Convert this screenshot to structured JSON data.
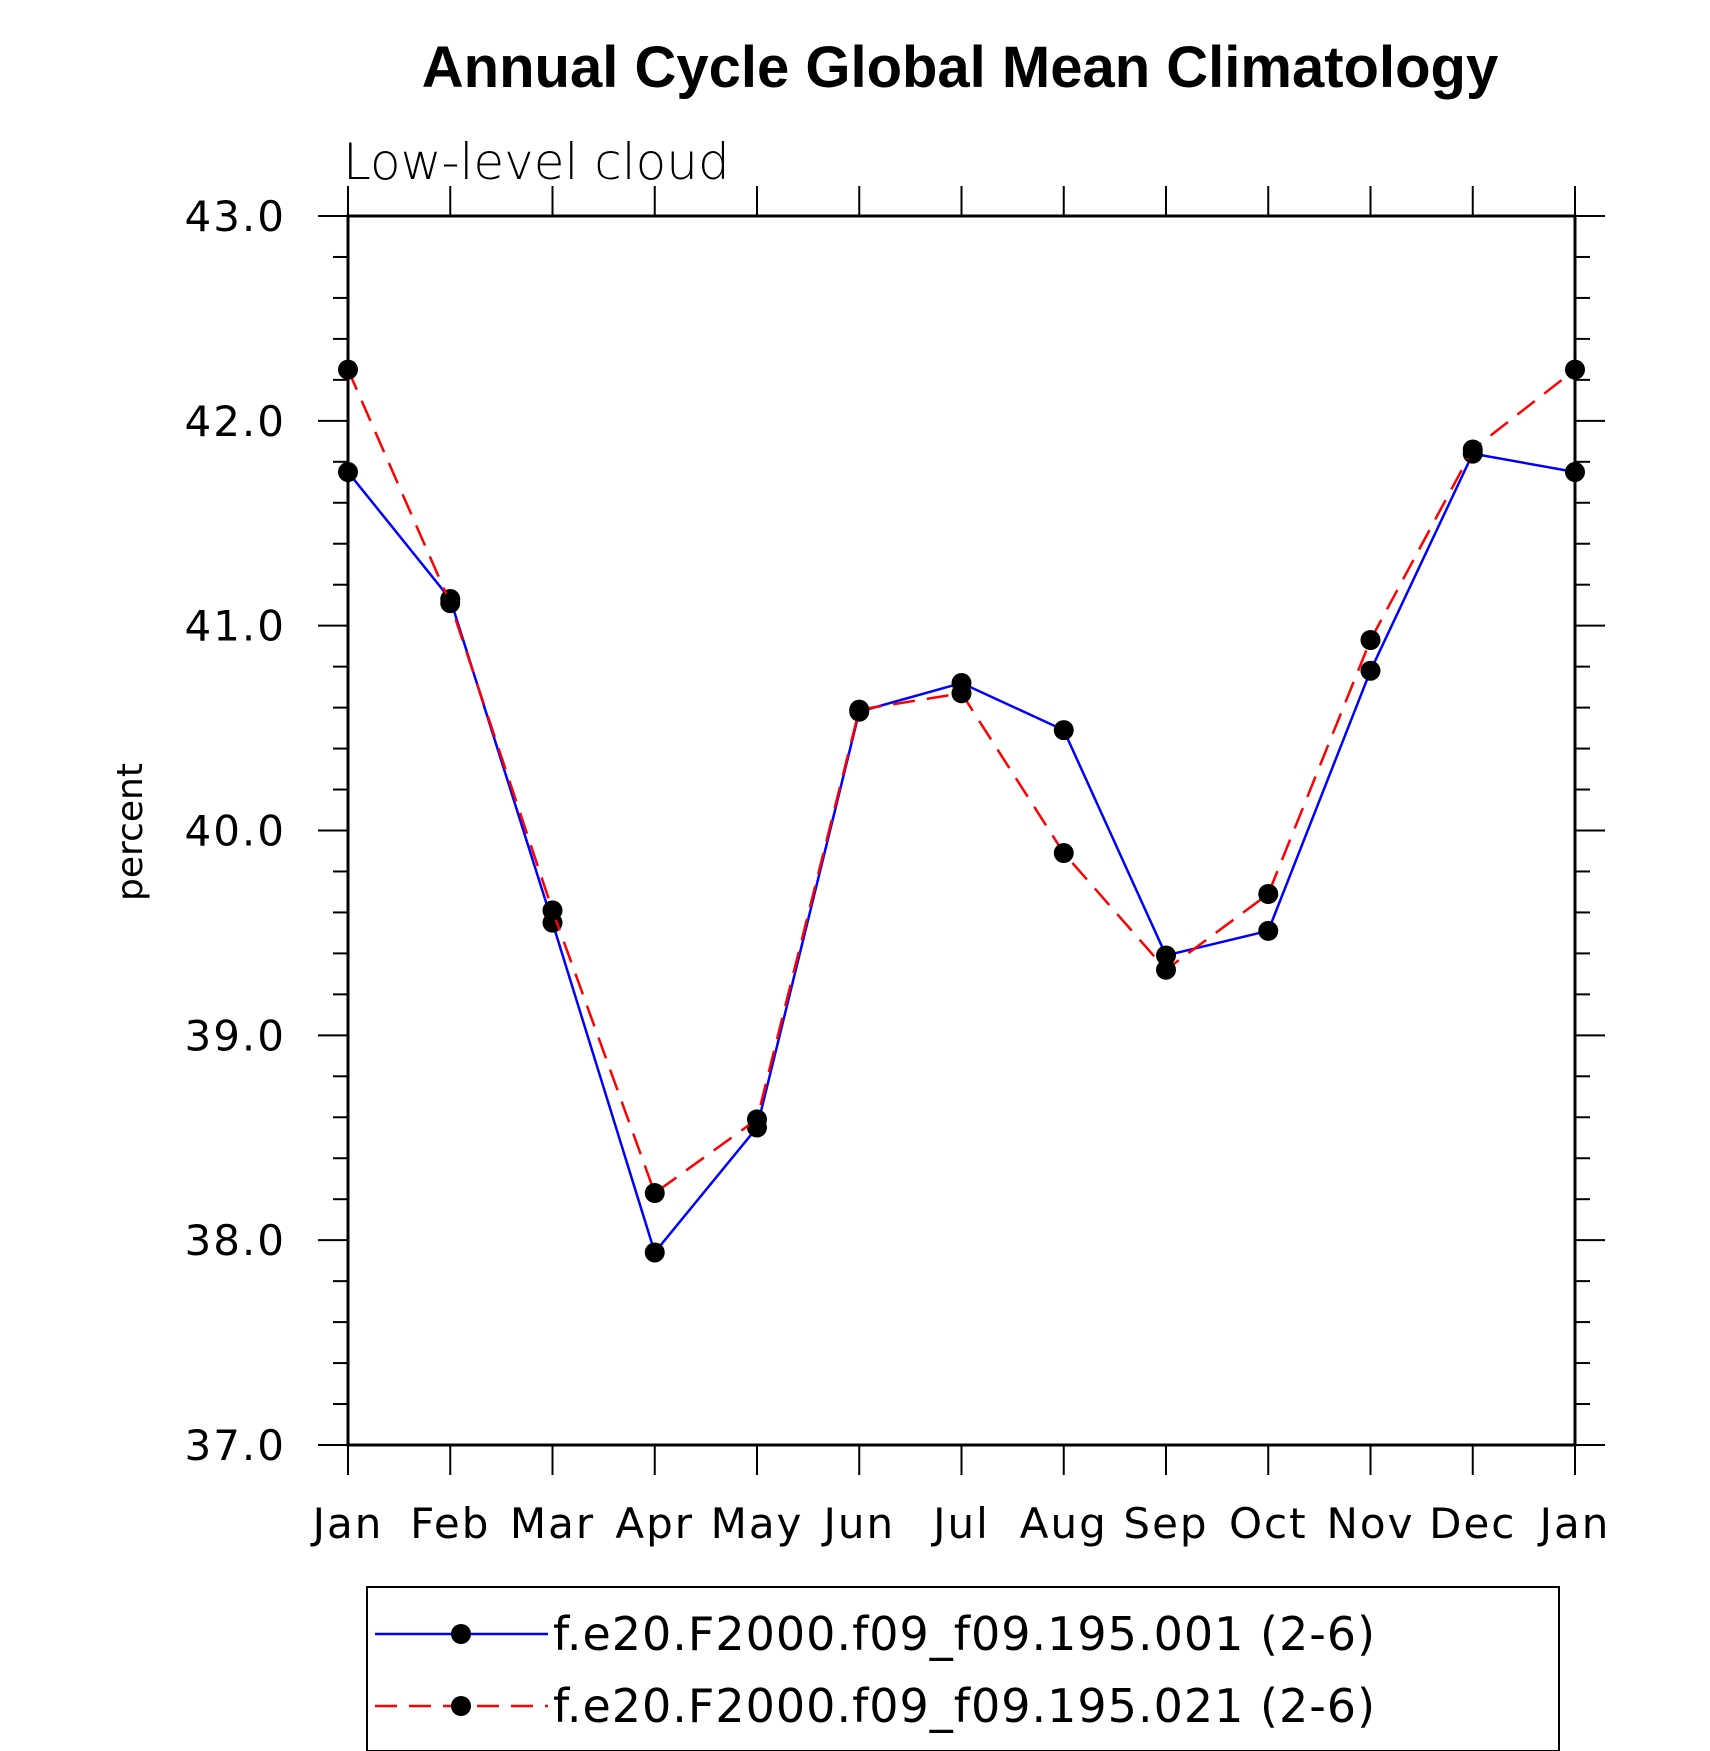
{
  "chart_data": {
    "type": "line",
    "title": "Annual Cycle Global Mean Climatology",
    "subtitle": "Low-level cloud",
    "xlabel": "",
    "ylabel": "percent",
    "categories": [
      "Jan",
      "Feb",
      "Mar",
      "Apr",
      "May",
      "Jun",
      "Jul",
      "Aug",
      "Sep",
      "Oct",
      "Nov",
      "Dec",
      "Jan"
    ],
    "ylim": [
      37.0,
      43.0
    ],
    "yticks": [
      "37.0",
      "38.0",
      "39.0",
      "40.0",
      "41.0",
      "42.0",
      "43.0"
    ],
    "grid": false,
    "legend_position": "bottom",
    "series": [
      {
        "name": "f.e20.F2000.f09_f09.195.001 (2-6)",
        "color": "#0000ff",
        "line_style": "solid",
        "marker": "filled-circle",
        "values": [
          41.75,
          41.13,
          39.55,
          37.94,
          38.55,
          40.58,
          40.72,
          40.49,
          39.39,
          39.51,
          40.78,
          41.84,
          41.75
        ]
      },
      {
        "name": "f.e20.F2000.f09_f09.195.021 (2-6)",
        "color": "#ff0000",
        "line_style": "dashed",
        "marker": "filled-circle",
        "values": [
          42.25,
          41.11,
          39.61,
          38.23,
          38.59,
          40.59,
          40.67,
          39.89,
          39.32,
          39.69,
          40.93,
          41.86,
          42.25
        ]
      }
    ]
  }
}
